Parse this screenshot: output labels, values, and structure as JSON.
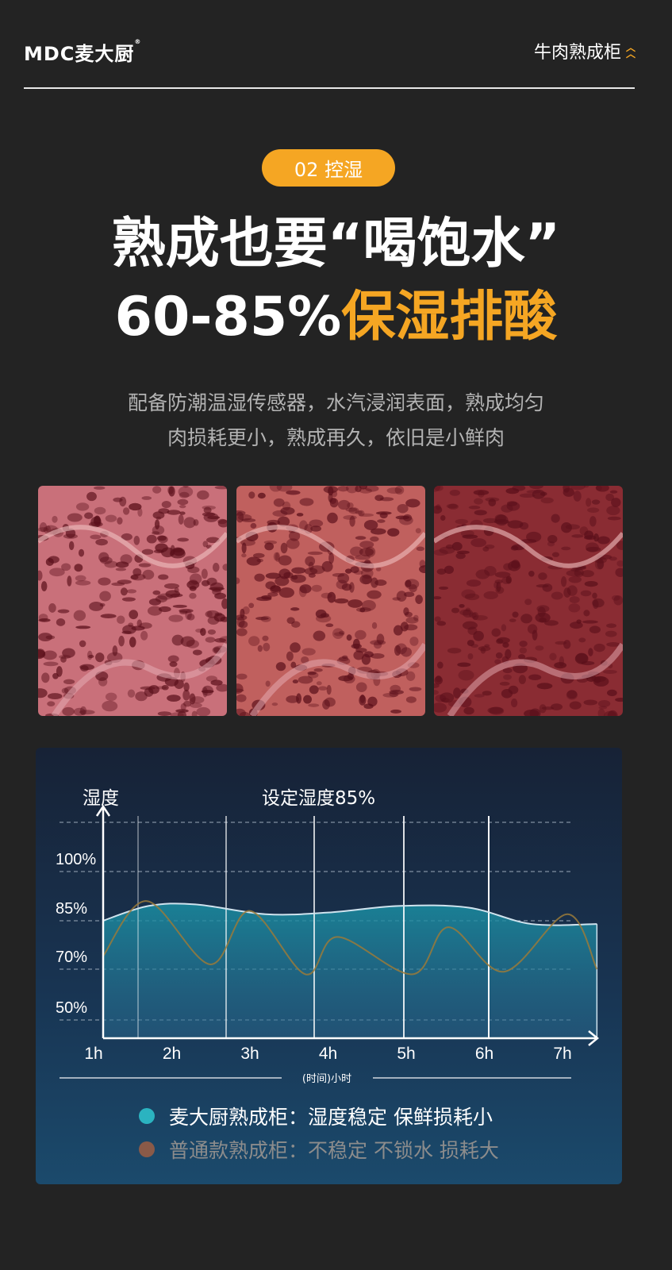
{
  "header": {
    "logo_text": "MDC麦大厨",
    "logo_mark": "®",
    "product_title": "牛肉熟成柜",
    "chevron_icon": "double-chevron-up-icon"
  },
  "badge": {
    "label": "02 控湿"
  },
  "headline": {
    "line1": "熟成也要“喝饱水”",
    "line2_white": "60-85%",
    "line2_orange": "保湿排酸"
  },
  "description": {
    "line1": "配备防潮温湿传感器，水汽浸润表面，熟成均匀",
    "line2": "肉损耗更小，熟成再久，依旧是小鲜肉"
  },
  "photos": [
    {
      "tone": "#c9707a"
    },
    {
      "tone": "#c0605e"
    },
    {
      "tone": "#8a2c33"
    }
  ],
  "colors": {
    "accent": "#f5a623",
    "background": "#232323",
    "series_stable": "#2bb3c0",
    "series_normal": "#8a5a48"
  },
  "chart_data": {
    "type": "line",
    "title": "设定湿度85%",
    "ylabel": "湿度",
    "xlabel": "(时间)小时",
    "x_ticks": [
      "1h",
      "2h",
      "3h",
      "4h",
      "5h",
      "6h",
      "7h"
    ],
    "y_ticks": [
      "100%",
      "85%",
      "70%",
      "50%"
    ],
    "y_tick_values": [
      100,
      85,
      70,
      50
    ],
    "grid": "dashed horizontal",
    "legend_position": "bottom",
    "series": [
      {
        "name": "麦大厨熟成柜：湿度稳定 保鲜损耗小",
        "color": "#2bb3c0",
        "area": true,
        "points": [
          [
            1.12,
            85
          ],
          [
            1.7,
            89.5
          ],
          [
            2.3,
            90
          ],
          [
            3.2,
            87
          ],
          [
            4.0,
            87.5
          ],
          [
            4.9,
            89.5
          ],
          [
            5.8,
            89
          ],
          [
            6.6,
            84
          ],
          [
            7.44,
            84
          ]
        ]
      },
      {
        "name": "普通款熟成柜：不稳定 不锁水 损耗大",
        "color": "#8a5a48",
        "area": false,
        "points": [
          [
            1.12,
            74
          ],
          [
            1.68,
            91
          ],
          [
            2.49,
            71.5
          ],
          [
            3.0,
            88
          ],
          [
            3.71,
            68
          ],
          [
            4.12,
            80
          ],
          [
            5.08,
            68
          ],
          [
            5.54,
            83
          ],
          [
            6.25,
            69
          ],
          [
            7.06,
            87
          ],
          [
            7.44,
            70
          ]
        ]
      }
    ]
  }
}
